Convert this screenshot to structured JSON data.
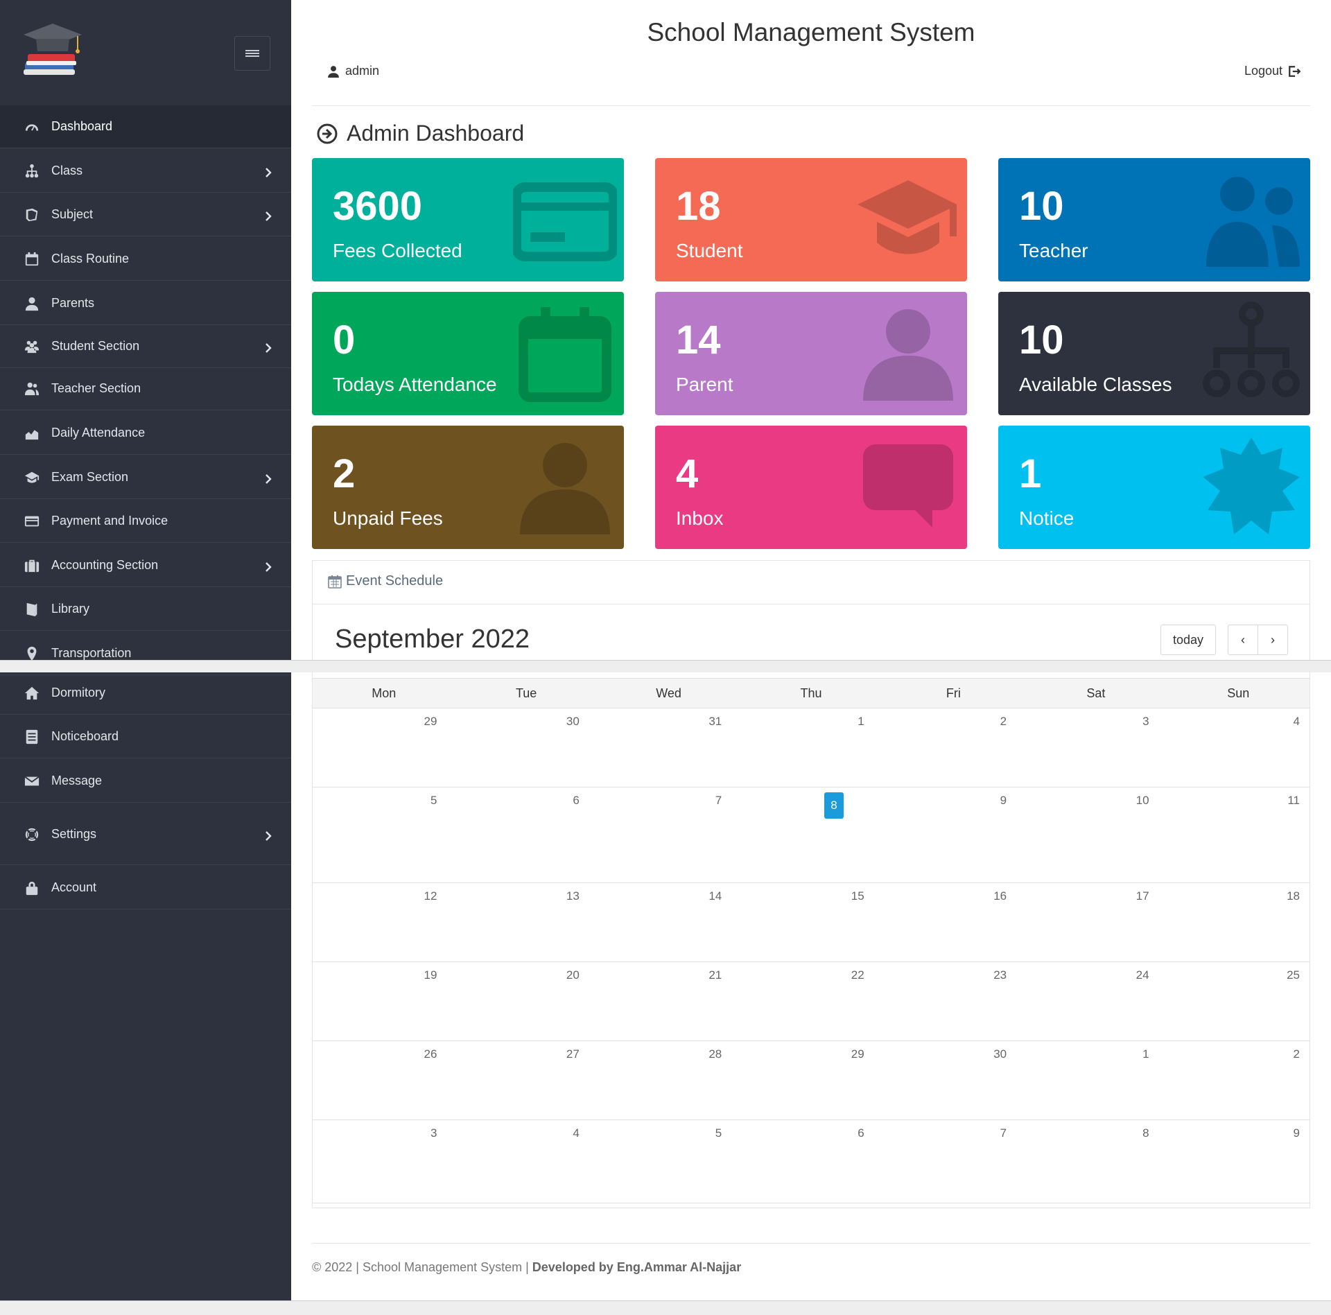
{
  "app": {
    "title": "School Management System"
  },
  "header": {
    "user": "admin",
    "logout": "Logout"
  },
  "sidebar": {
    "items": [
      {
        "label": "Dashboard",
        "icon": "dashboard-icon",
        "active": true,
        "chevron": false
      },
      {
        "label": "Class",
        "icon": "class-icon",
        "chevron": true
      },
      {
        "label": "Subject",
        "icon": "subject-icon",
        "chevron": true
      },
      {
        "label": "Class Routine",
        "icon": "calendar-icon",
        "chevron": false
      },
      {
        "label": "Parents",
        "icon": "user-icon",
        "chevron": false
      },
      {
        "label": "Student Section",
        "icon": "users-icon",
        "chevron": true
      },
      {
        "label": "Teacher Section",
        "icon": "teacher-icon",
        "chevron": false
      },
      {
        "label": "Daily Attendance",
        "icon": "chart-area-icon",
        "chevron": false
      },
      {
        "label": "Exam Section",
        "icon": "graduation-icon",
        "chevron": true
      },
      {
        "label": "Payment and Invoice",
        "icon": "credit-card-icon",
        "chevron": false
      },
      {
        "label": "Accounting Section",
        "icon": "briefcase-icon",
        "chevron": true
      },
      {
        "label": "Library",
        "icon": "book-icon",
        "chevron": false
      },
      {
        "label": "Transportation",
        "icon": "map-marker-icon",
        "chevron": false
      },
      {
        "label": "Dormitory",
        "icon": "home-icon",
        "chevron": false
      },
      {
        "label": "Noticeboard",
        "icon": "notice-icon",
        "chevron": false
      },
      {
        "label": "Message",
        "icon": "envelope-icon",
        "chevron": false
      },
      {
        "label": "Settings",
        "icon": "lifebuoy-icon",
        "chevron": true
      },
      {
        "label": "Account",
        "icon": "lock-icon",
        "chevron": false
      }
    ]
  },
  "dashboard": {
    "title": "Admin Dashboard",
    "cards": [
      {
        "value": "3600",
        "label": "Fees Collected",
        "color": "#00b09b",
        "icon": "credit-card-icon"
      },
      {
        "value": "18",
        "label": "Student",
        "color": "#f46a55",
        "icon": "graduation-cap-icon"
      },
      {
        "value": "10",
        "label": "Teacher",
        "color": "#0073b7",
        "icon": "users-icon"
      },
      {
        "value": "0",
        "label": "Todays Attendance",
        "color": "#00a65a",
        "icon": "calendar-icon"
      },
      {
        "value": "14",
        "label": "Parent",
        "color": "#b87ac8",
        "icon": "user-icon"
      },
      {
        "value": "10",
        "label": "Available Classes",
        "color": "#2d323e",
        "icon": "sitemap-icon"
      },
      {
        "value": "2",
        "label": "Unpaid Fees",
        "color": "#6e5220",
        "icon": "user-icon"
      },
      {
        "value": "4",
        "label": "Inbox",
        "color": "#ea3a84",
        "icon": "comment-icon"
      },
      {
        "value": "1",
        "label": "Notice",
        "color": "#00c0ef",
        "icon": "certificate-icon"
      }
    ]
  },
  "events": {
    "title": "Event Schedule",
    "month": "September 2022",
    "today_label": "today",
    "prev_label": "‹",
    "next_label": "›",
    "weekdays": [
      "Mon",
      "Tue",
      "Wed",
      "Thu",
      "Fri",
      "Sat",
      "Sun"
    ],
    "weeks": [
      [
        "29",
        "30",
        "31",
        "1",
        "2",
        "3",
        "4"
      ],
      [
        "5",
        "6",
        "7",
        "8",
        "9",
        "10",
        "11"
      ],
      [
        "12",
        "13",
        "14",
        "15",
        "16",
        "17",
        "18"
      ],
      [
        "19",
        "20",
        "21",
        "22",
        "23",
        "24",
        "25"
      ],
      [
        "26",
        "27",
        "28",
        "29",
        "30",
        "1",
        "2"
      ],
      [
        "3",
        "4",
        "5",
        "6",
        "7",
        "8",
        "9"
      ]
    ],
    "today": "8"
  },
  "footer": {
    "text": "© 2022 | School Management System | ",
    "credit": "Developed by Eng.Ammar Al-Najjar"
  }
}
